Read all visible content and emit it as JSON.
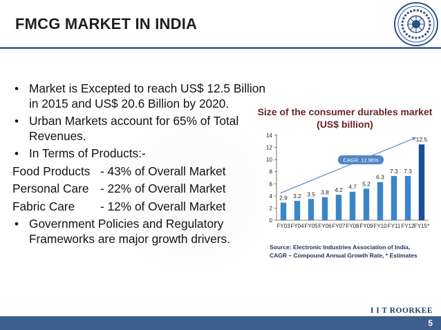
{
  "slide": {
    "title": "FMCG MARKET IN INDIA",
    "page_number": "5",
    "footer_brand": "I I T ROORKEE"
  },
  "bullets": [
    "Market is Excepted to reach US$ 12.5 Billion in 2015 and US$ 20.6 Billion by 2020.",
    "Urban Markets account for 65% of Total Revenues.",
    "In Terms of Products:-"
  ],
  "product_shares": [
    {
      "label": "Food Products",
      "value": "- 43% of Overall Market"
    },
    {
      "label": "Personal Care",
      "value": "- 22% of Overall Market"
    },
    {
      "label": "Fabric Care",
      "value": "- 12% of Overall Market"
    }
  ],
  "last_bullet": "Government Policies and Regulatory Frameworks are major growth drivers.",
  "colors": {
    "accent": "#4a6e9b",
    "footer": "#3c5f8e",
    "bar": "#3a86c8",
    "bar_last": "#1a4f96",
    "chart_title": "#6a2524"
  },
  "chart_data": {
    "type": "bar",
    "title_line1": "Size of the consumer durables market",
    "title_line2": "(US$ billion)",
    "categories": [
      "FY03",
      "FY04",
      "FY05",
      "FY06",
      "FY07",
      "FY08",
      "FY09",
      "FY10",
      "FY11",
      "FY12",
      "FY15*"
    ],
    "values": [
      2.9,
      3.2,
      3.5,
      3.8,
      4.2,
      4.7,
      5.2,
      6.3,
      7.3,
      7.3,
      12.5
    ],
    "value_labels": [
      "2.9",
      "3.2",
      "3.5",
      "3.8",
      "4.2",
      "4.7",
      "5.2",
      "6.3",
      "7.3",
      "7.3",
      "12.5"
    ],
    "ylim": [
      0,
      14
    ],
    "yticks": [
      0,
      2,
      4,
      6,
      8,
      10,
      12,
      14
    ],
    "annotation": "CAGR: 12.96%",
    "source_line1": "Source: Electronic Industries Association of India,",
    "source_line2": "CAGR – Compound Annual Growth Rate, * Estimates",
    "grid": false,
    "legend": "none"
  }
}
